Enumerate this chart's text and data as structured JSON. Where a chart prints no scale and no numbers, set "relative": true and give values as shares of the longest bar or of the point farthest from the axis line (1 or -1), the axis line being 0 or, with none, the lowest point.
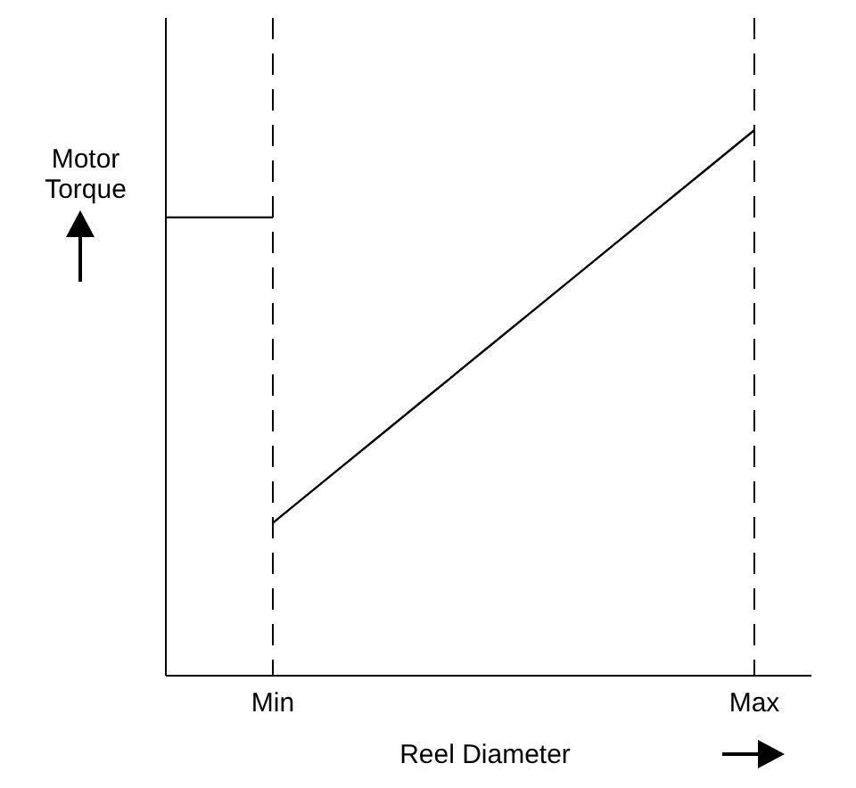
{
  "chart_data": {
    "type": "line",
    "relative": true,
    "xlabel": "Reel Diameter",
    "ylabel": "Motor Torque",
    "categories": [
      null,
      null,
      "Min",
      null,
      null,
      null,
      null,
      null,
      null,
      null,
      null,
      "Max"
    ],
    "series": [
      {
        "color": "#000000",
        "values": [
          null,
          null,
          0.28,
          0.36,
          0.44,
          0.52,
          0.6,
          0.68,
          0.76,
          0.84,
          0.92,
          1
        ]
      },
      {
        "color": "#000000",
        "values": [
          0.84,
          0.84,
          0.84,
          null,
          null,
          null,
          null,
          null,
          null,
          null,
          null,
          null
        ]
      }
    ],
    "ref_lines": [
      {
        "axis": "x",
        "value": "Min",
        "color": "#000000",
        "line_style": "dashed"
      },
      {
        "axis": "x",
        "value": "Max",
        "color": "#000000",
        "line_style": "dashed"
      }
    ],
    "grid": false,
    "marker": "none",
    "line_style": "solid"
  }
}
